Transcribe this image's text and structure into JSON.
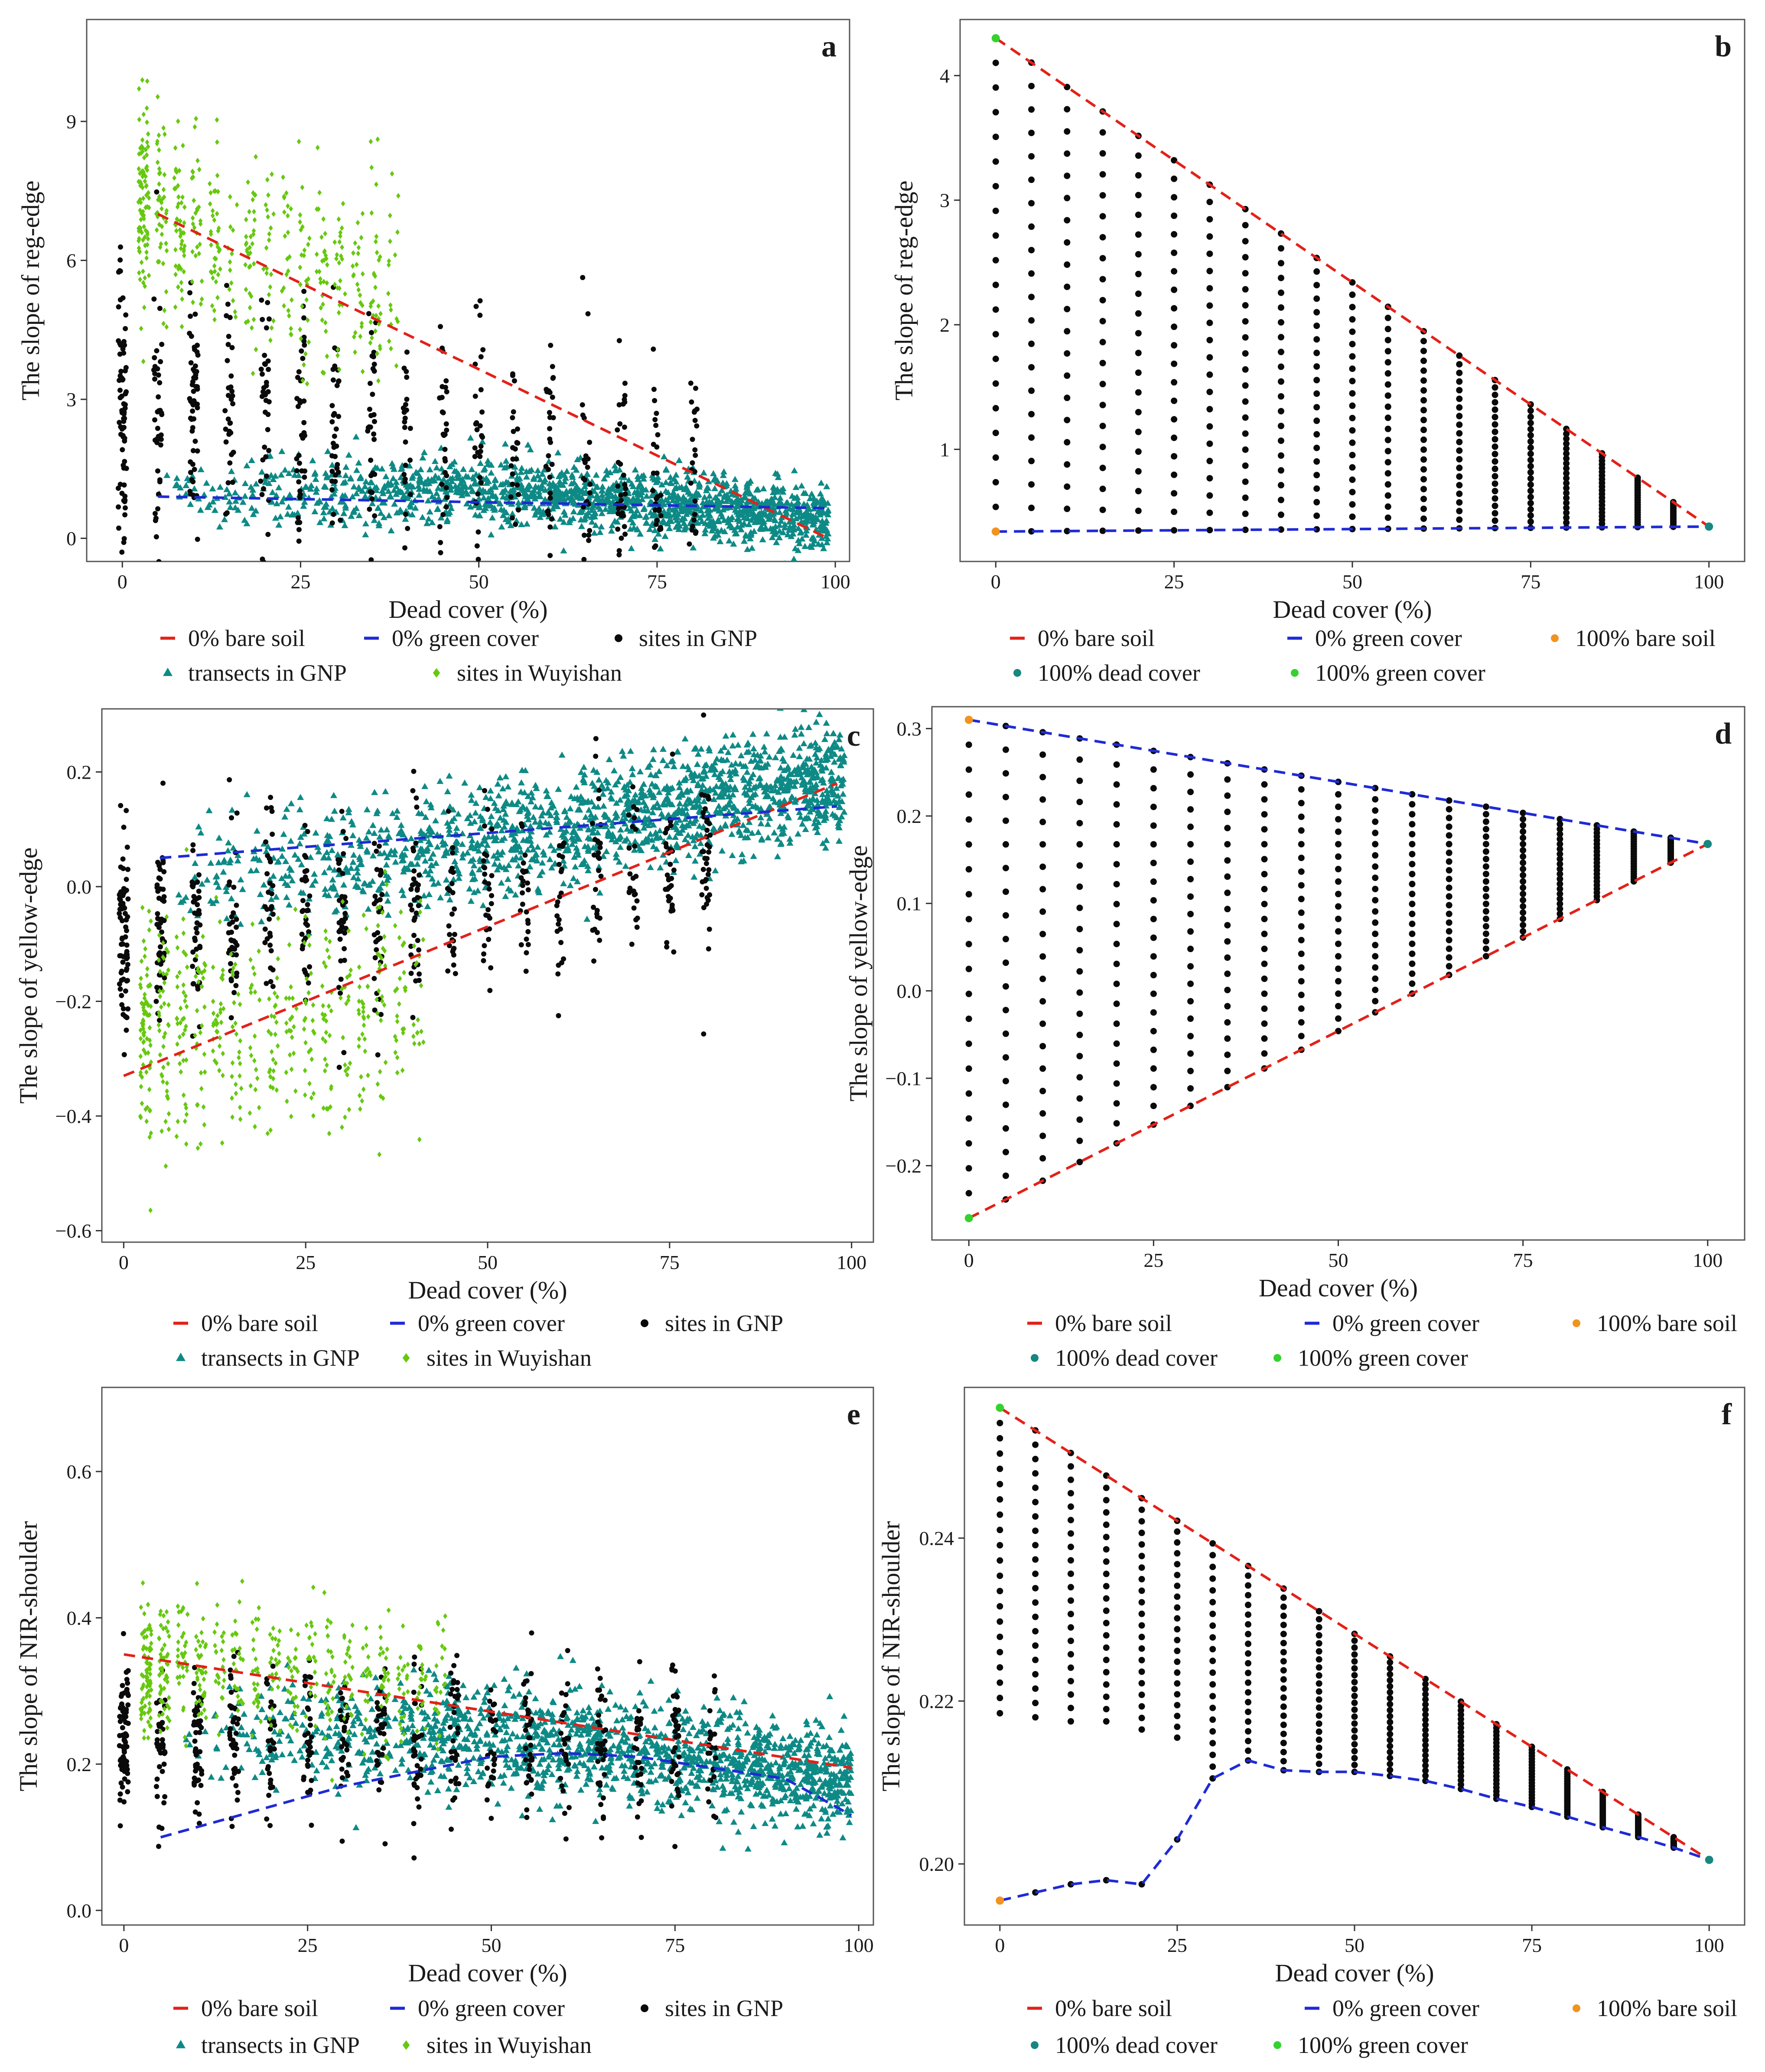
{
  "colors": {
    "bare_soil_0": "#e32119",
    "green_cover_0": "#1f2ad6",
    "sites_gnp": "#0a0a0a",
    "transects_gnp": "#0e8a86",
    "sites_wuyishan": "#66c80f",
    "bare_soil_100": "#f2931f",
    "dead_cover_100": "#17877f",
    "green_cover_100": "#35d22f"
  },
  "chart_data": [
    {
      "id": "a",
      "type": "scatter",
      "panel_letter": "a",
      "xlabel": "Dead cover (%)",
      "ylabel": "The slope of reg-edge",
      "xlim": [
        -5,
        102
      ],
      "ylim": [
        -0.5,
        11.2
      ],
      "xticks": [
        0,
        25,
        50,
        75,
        100
      ],
      "yticks": [
        0,
        3,
        6,
        9
      ],
      "lines": [
        {
          "name": "0% bare soil",
          "color_key": "bare_soil_0",
          "x": [
            5,
            99
          ],
          "y": [
            7.0,
            0.0
          ]
        },
        {
          "name": "0% green cover",
          "color_key": "green_cover_0",
          "x": [
            5,
            99
          ],
          "y": [
            0.9,
            0.65
          ]
        }
      ],
      "point_clouds": [
        {
          "name": "transects in GNP",
          "shape": "triangle",
          "color_key": "transects_gnp",
          "n": 1500,
          "xrange": [
            5,
            99
          ],
          "trend": [
            [
              5,
              1.0
            ],
            [
              50,
              1.05
            ],
            [
              99,
              0.45
            ]
          ],
          "spread": 0.35
        },
        {
          "name": "sites in GNP",
          "shape": "dot",
          "color_key": "sites_gnp",
          "n": 600,
          "xrange": [
            0,
            80
          ],
          "trend": [
            [
              0,
              3.0
            ],
            [
              40,
              2.1
            ],
            [
              80,
              1.0
            ]
          ],
          "spread": 1.4
        },
        {
          "name": "sites in Wuyishan",
          "shape": "diamond",
          "color_key": "sites_wuyishan",
          "n": 500,
          "xrange": [
            3,
            40
          ],
          "trend": [
            [
              3,
              7.2
            ],
            [
              20,
              6.2
            ],
            [
              40,
              5.2
            ]
          ],
          "spread": 1.1
        }
      ],
      "legend": [
        [
          {
            "label": "0% bare soil",
            "kind": "dash",
            "color_key": "bare_soil_0"
          },
          {
            "label": "0% green cover",
            "kind": "dash",
            "color_key": "green_cover_0"
          },
          {
            "label": "sites in GNP",
            "kind": "dot",
            "color_key": "sites_gnp"
          }
        ],
        [
          {
            "label": "transects in GNP",
            "kind": "triangle",
            "color_key": "transects_gnp"
          },
          {
            "label": "sites in Wuyishan",
            "kind": "diamond",
            "color_key": "sites_wuyishan"
          }
        ]
      ]
    },
    {
      "id": "b",
      "type": "scatter",
      "panel_letter": "b",
      "xlabel": "Dead cover (%)",
      "ylabel": "The slope of reg-edge",
      "xlim": [
        -5,
        105
      ],
      "ylim": [
        0.1,
        4.45
      ],
      "xticks": [
        0,
        25,
        50,
        75,
        100
      ],
      "yticks": [
        1,
        2,
        3,
        4
      ],
      "lines": [
        {
          "name": "0% bare soil",
          "color_key": "bare_soil_0",
          "x": [
            0,
            100
          ],
          "y": [
            4.3,
            0.38
          ]
        },
        {
          "name": "0% green cover",
          "color_key": "green_cover_0",
          "x": [
            0,
            100
          ],
          "y": [
            0.34,
            0.38
          ]
        }
      ],
      "grid_points": {
        "color_key": "sites_gnp",
        "x_step": 5,
        "x_max": 100,
        "n_per_column": 21,
        "upper": {
          "x": [
            0,
            100
          ],
          "y": [
            4.3,
            0.38
          ]
        },
        "lower": {
          "x": [
            0,
            100
          ],
          "y": [
            0.34,
            0.38
          ]
        }
      },
      "endpoints": [
        {
          "name": "100% bare soil",
          "color_key": "bare_soil_100",
          "x": 0,
          "y": 0.34
        },
        {
          "name": "100% dead cover",
          "color_key": "dead_cover_100",
          "x": 100,
          "y": 0.38
        },
        {
          "name": "100% green cover",
          "color_key": "green_cover_100",
          "x": 0,
          "y": 4.3
        }
      ],
      "legend": [
        [
          {
            "label": "0% bare soil",
            "kind": "dash",
            "color_key": "bare_soil_0"
          },
          {
            "label": "0% green cover",
            "kind": "dash",
            "color_key": "green_cover_0"
          },
          {
            "label": "100% bare soil",
            "kind": "dot",
            "color_key": "bare_soil_100"
          }
        ],
        [
          {
            "label": "100% dead cover",
            "kind": "dot",
            "color_key": "dead_cover_100"
          },
          {
            "label": "100% green cover",
            "kind": "dot",
            "color_key": "green_cover_100"
          }
        ]
      ]
    },
    {
      "id": "c",
      "type": "scatter",
      "panel_letter": "c",
      "xlabel": "Dead cover (%)",
      "ylabel": "The slope of yellow-edge",
      "xlim": [
        -3,
        103
      ],
      "ylim": [
        -0.62,
        0.31
      ],
      "xticks": [
        0,
        25,
        50,
        75,
        100
      ],
      "yticks": [
        -0.6,
        -0.4,
        -0.2,
        0.0,
        0.2
      ],
      "ytick_labels": [
        "−0.6",
        "−0.4",
        "−0.2",
        "0.0",
        "0.2"
      ],
      "lines": [
        {
          "name": "0% bare soil",
          "color_key": "bare_soil_0",
          "x": [
            0,
            98
          ],
          "y": [
            -0.33,
            0.18
          ]
        },
        {
          "name": "0% green cover",
          "color_key": "green_cover_0",
          "x": [
            5,
            98
          ],
          "y": [
            0.05,
            0.14
          ]
        }
      ],
      "point_clouds": [
        {
          "name": "transects in GNP",
          "shape": "triangle",
          "color_key": "transects_gnp",
          "n": 1500,
          "xrange": [
            5,
            99
          ],
          "trend": [
            [
              5,
              0.0
            ],
            [
              50,
              0.08
            ],
            [
              99,
              0.19
            ]
          ],
          "spread": 0.05
        },
        {
          "name": "sites in GNP",
          "shape": "dot",
          "color_key": "sites_gnp",
          "n": 600,
          "xrange": [
            0,
            80
          ],
          "trend": [
            [
              0,
              -0.08
            ],
            [
              40,
              -0.05
            ],
            [
              80,
              0.05
            ]
          ],
          "spread": 0.09
        },
        {
          "name": "sites in Wuyishan",
          "shape": "diamond",
          "color_key": "sites_wuyishan",
          "n": 500,
          "xrange": [
            3,
            42
          ],
          "trend": [
            [
              3,
              -0.25
            ],
            [
              20,
              -0.25
            ],
            [
              42,
              -0.18
            ]
          ],
          "spread": 0.1
        }
      ],
      "legend": [
        [
          {
            "label": "0% bare soil",
            "kind": "dash",
            "color_key": "bare_soil_0"
          },
          {
            "label": "0% green cover",
            "kind": "dash",
            "color_key": "green_cover_0"
          },
          {
            "label": "sites in GNP",
            "kind": "dot",
            "color_key": "sites_gnp"
          }
        ],
        [
          {
            "label": "transects in GNP",
            "kind": "triangle",
            "color_key": "transects_gnp"
          },
          {
            "label": "sites in Wuyishan",
            "kind": "diamond",
            "color_key": "sites_wuyishan"
          }
        ]
      ]
    },
    {
      "id": "d",
      "type": "scatter",
      "panel_letter": "d",
      "xlabel": "Dead cover (%)",
      "ylabel": "The slope of yellow-edge",
      "xlim": [
        -5,
        105
      ],
      "ylim": [
        -0.285,
        0.325
      ],
      "xticks": [
        0,
        25,
        50,
        75,
        100
      ],
      "yticks": [
        -0.2,
        -0.1,
        0.0,
        0.1,
        0.2,
        0.3
      ],
      "ytick_labels": [
        "−0.2",
        "−0.1",
        "0.0",
        "0.1",
        "0.2",
        "0.3"
      ],
      "lines": [
        {
          "name": "0% bare soil",
          "color_key": "bare_soil_0",
          "x": [
            0,
            100
          ],
          "y": [
            -0.26,
            0.168
          ]
        },
        {
          "name": "0% green cover",
          "color_key": "green_cover_0",
          "x": [
            0,
            100
          ],
          "y": [
            0.31,
            0.168
          ]
        }
      ],
      "grid_points": {
        "color_key": "sites_gnp",
        "x_step": 5,
        "x_max": 100,
        "n_per_column": 21,
        "upper": {
          "x": [
            0,
            100
          ],
          "y": [
            0.31,
            0.168
          ]
        },
        "lower": {
          "x": [
            0,
            100
          ],
          "y": [
            -0.26,
            0.168
          ]
        }
      },
      "endpoints": [
        {
          "name": "100% bare soil",
          "color_key": "bare_soil_100",
          "x": 0,
          "y": 0.31
        },
        {
          "name": "100% dead cover",
          "color_key": "dead_cover_100",
          "x": 100,
          "y": 0.168
        },
        {
          "name": "100% green cover",
          "color_key": "green_cover_100",
          "x": 0,
          "y": -0.26
        }
      ],
      "legend": [
        [
          {
            "label": "0% bare soil",
            "kind": "dash",
            "color_key": "bare_soil_0"
          },
          {
            "label": "0% green cover",
            "kind": "dash",
            "color_key": "green_cover_0"
          },
          {
            "label": "100% bare soil",
            "kind": "dot",
            "color_key": "bare_soil_100"
          }
        ],
        [
          {
            "label": "100% dead cover",
            "kind": "dot",
            "color_key": "dead_cover_100"
          },
          {
            "label": "100% green cover",
            "kind": "dot",
            "color_key": "green_cover_100"
          }
        ]
      ]
    },
    {
      "id": "e",
      "type": "scatter",
      "panel_letter": "e",
      "xlabel": "Dead cover (%)",
      "ylabel": "The slope of NIR-shoulder",
      "xlim": [
        -3,
        102
      ],
      "ylim": [
        -0.02,
        0.715
      ],
      "xticks": [
        0,
        25,
        50,
        75,
        100
      ],
      "yticks": [
        0.0,
        0.2,
        0.4,
        0.6
      ],
      "ytick_labels": [
        "0.0",
        "0.2",
        "0.4",
        "0.6"
      ],
      "lines": [
        {
          "name": "0% bare soil",
          "color_key": "bare_soil_0",
          "x": [
            0,
            99
          ],
          "y": [
            0.35,
            0.195
          ]
        },
        {
          "name": "0% green cover",
          "color_key": "green_cover_0",
          "x": [
            5,
            30,
            50,
            60,
            70,
            90,
            99
          ],
          "y": [
            0.1,
            0.17,
            0.21,
            0.215,
            0.21,
            0.18,
            0.13
          ]
        }
      ],
      "point_clouds": [
        {
          "name": "transects in GNP",
          "shape": "triangle",
          "color_key": "transects_gnp",
          "n": 1500,
          "xrange": [
            5,
            99
          ],
          "trend": [
            [
              5,
              0.24
            ],
            [
              50,
              0.24
            ],
            [
              99,
              0.18
            ]
          ],
          "spread": 0.035
        },
        {
          "name": "sites in GNP",
          "shape": "dot",
          "color_key": "sites_gnp",
          "n": 600,
          "xrange": [
            0,
            80
          ],
          "trend": [
            [
              0,
              0.24
            ],
            [
              40,
              0.23
            ],
            [
              80,
              0.22
            ]
          ],
          "spread": 0.055
        },
        {
          "name": "sites in Wuyishan",
          "shape": "diamond",
          "color_key": "sites_wuyishan",
          "n": 500,
          "xrange": [
            3,
            45
          ],
          "trend": [
            [
              3,
              0.33
            ],
            [
              20,
              0.33
            ],
            [
              45,
              0.31
            ]
          ],
          "spread": 0.045
        }
      ],
      "legend": [
        [
          {
            "label": "0% bare soil",
            "kind": "dash",
            "color_key": "bare_soil_0"
          },
          {
            "label": "0% green cover",
            "kind": "dash",
            "color_key": "green_cover_0"
          },
          {
            "label": "sites in GNP",
            "kind": "dot",
            "color_key": "sites_gnp"
          }
        ],
        [
          {
            "label": "transects in GNP",
            "kind": "triangle",
            "color_key": "transects_gnp"
          },
          {
            "label": "sites in Wuyishan",
            "kind": "diamond",
            "color_key": "sites_wuyishan"
          }
        ]
      ]
    },
    {
      "id": "f",
      "type": "scatter",
      "panel_letter": "f",
      "xlabel": "Dead cover (%)",
      "ylabel": "The slope of NIR-shoulder",
      "xlim": [
        -5,
        105
      ],
      "ylim": [
        0.1925,
        0.2585
      ],
      "xticks": [
        0,
        25,
        50,
        75,
        100
      ],
      "yticks": [
        0.2,
        0.22,
        0.24
      ],
      "ytick_labels": [
        "0.20",
        "0.22",
        "0.24"
      ],
      "lines": [
        {
          "name": "0% bare soil",
          "color_key": "bare_soil_0",
          "x": [
            0,
            100
          ],
          "y": [
            0.256,
            0.2005
          ]
        },
        {
          "name": "0% green cover",
          "color_key": "green_cover_0",
          "x": [
            0,
            5,
            10,
            15,
            20,
            25,
            30,
            35,
            40,
            45,
            50,
            55,
            60,
            65,
            70,
            75,
            80,
            85,
            90,
            95,
            100
          ],
          "y": [
            0.1955,
            0.1965,
            0.1975,
            0.198,
            0.1975,
            0.203,
            0.2105,
            0.2127,
            0.2115,
            0.2113,
            0.2113,
            0.2108,
            0.2102,
            0.2092,
            0.208,
            0.207,
            0.2058,
            0.2045,
            0.2033,
            0.202,
            0.2005
          ]
        }
      ],
      "grid_points": {
        "color_key": "sites_gnp",
        "x_step": 5,
        "x_max": 100,
        "n_per_column": 21,
        "upper": {
          "x": [
            0,
            100
          ],
          "y": [
            0.256,
            0.2005
          ]
        },
        "lower": {
          "x": [
            0,
            5,
            10,
            15,
            20,
            25,
            30,
            35,
            40,
            45,
            50,
            55,
            60,
            65,
            70,
            75,
            80,
            85,
            90,
            95,
            100
          ],
          "y": [
            0.1955,
            0.1965,
            0.1975,
            0.198,
            0.1975,
            0.203,
            0.2105,
            0.2127,
            0.2115,
            0.2113,
            0.2113,
            0.2108,
            0.2102,
            0.2092,
            0.208,
            0.207,
            0.2058,
            0.2045,
            0.2033,
            0.202,
            0.2005
          ]
        },
        "gap_below_x": 30,
        "gap_floor": [
          0.2185,
          0.218,
          0.2175,
          0.2175,
          0.2165,
          0.2155
        ]
      },
      "endpoints": [
        {
          "name": "100% bare soil",
          "color_key": "bare_soil_100",
          "x": 0,
          "y": 0.1955
        },
        {
          "name": "100% dead cover",
          "color_key": "dead_cover_100",
          "x": 100,
          "y": 0.2005
        },
        {
          "name": "100% green cover",
          "color_key": "green_cover_100",
          "x": 0,
          "y": 0.256
        }
      ],
      "legend": [
        [
          {
            "label": "0% bare soil",
            "kind": "dash",
            "color_key": "bare_soil_0"
          },
          {
            "label": "0% green cover",
            "kind": "dash",
            "color_key": "green_cover_0"
          },
          {
            "label": "100% bare soil",
            "kind": "dot",
            "color_key": "bare_soil_100"
          }
        ],
        [
          {
            "label": "100% dead cover",
            "kind": "dot",
            "color_key": "dead_cover_100"
          },
          {
            "label": "100% green cover",
            "kind": "dot",
            "color_key": "green_cover_100"
          }
        ]
      ]
    }
  ]
}
